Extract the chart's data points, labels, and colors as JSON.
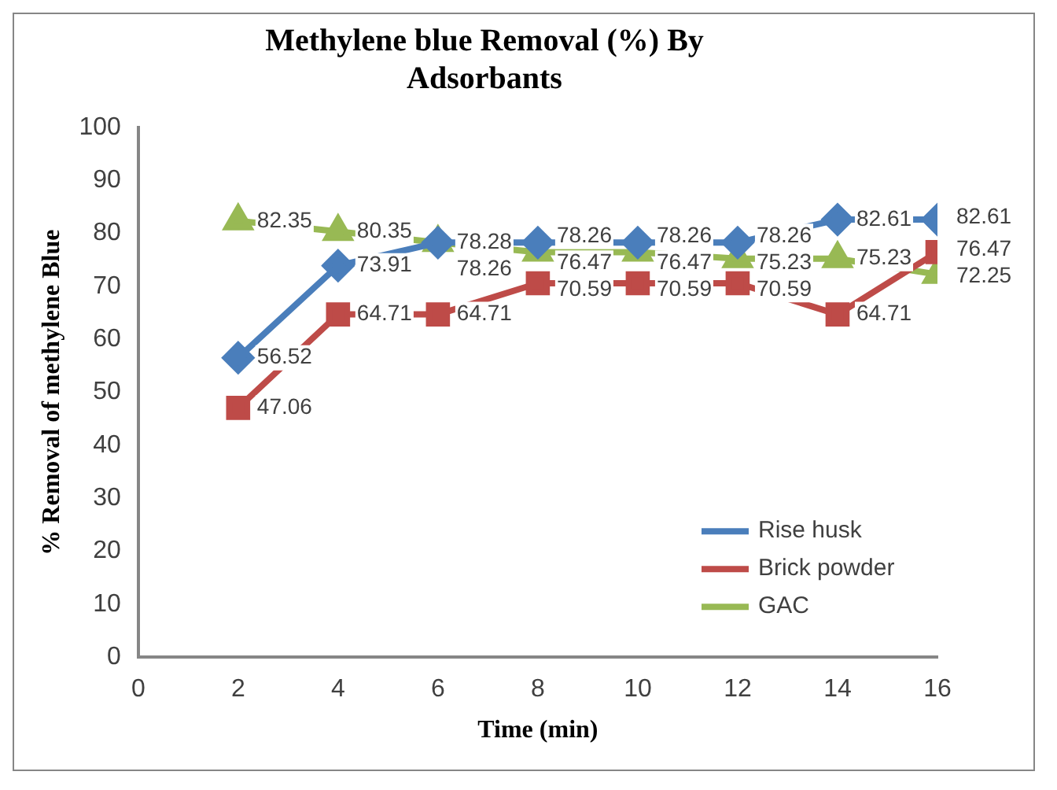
{
  "chart_data": {
    "type": "line",
    "title": "Methylene blue Removal (%) By Adsorbants",
    "xlabel": "Time (min)",
    "ylabel": "% Removal of methylene Blue",
    "x": [
      2,
      4,
      6,
      8,
      10,
      12,
      14,
      16
    ],
    "series": [
      {
        "name": "Rise husk",
        "color": "#4a7ebb",
        "marker": "diamond",
        "values": [
          56.52,
          73.91,
          78.26,
          78.26,
          78.26,
          78.26,
          82.61,
          82.61
        ]
      },
      {
        "name": "Brick powder",
        "color": "#be4b48",
        "marker": "square",
        "values": [
          47.06,
          64.71,
          64.71,
          70.59,
          70.59,
          70.59,
          64.71,
          76.47
        ]
      },
      {
        "name": "GAC",
        "color": "#98b954",
        "marker": "triangle",
        "values": [
          82.35,
          80.35,
          78.28,
          76.47,
          76.47,
          75.23,
          75.23,
          72.25
        ]
      }
    ],
    "xlim": [
      0,
      16
    ],
    "xticks": [
      0,
      2,
      4,
      6,
      8,
      10,
      12,
      14,
      16
    ],
    "ylim": [
      0,
      100
    ],
    "yticks": [
      0,
      10,
      20,
      30,
      40,
      50,
      60,
      70,
      80,
      90,
      100
    ],
    "grid": false,
    "legend": "bottom right",
    "data_labels": true
  }
}
